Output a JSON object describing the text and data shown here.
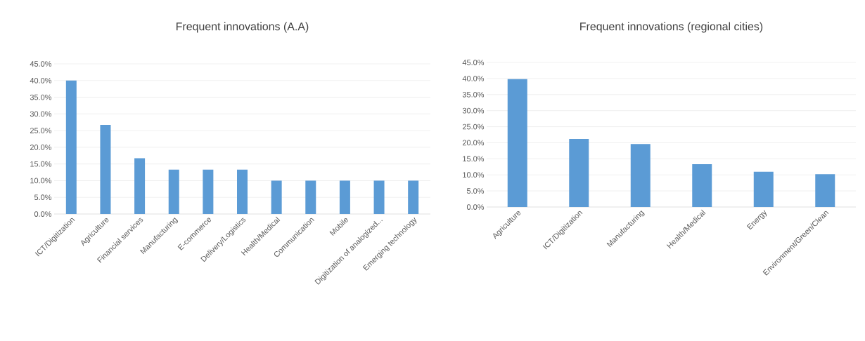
{
  "chart_data": [
    {
      "type": "bar",
      "title": "Frequent innovations (A.A)",
      "categories": [
        "ICT/Digitization",
        "Agriculture",
        "Financial services",
        "Manufacturing",
        "E-commerce",
        "Delivery/Logistics",
        "Health/Medical",
        "Communication",
        "Mobile",
        "Digitization of analogized...",
        "Emerging technology"
      ],
      "values": [
        40,
        26.7,
        16.7,
        13.3,
        13.3,
        13.3,
        10,
        10,
        10,
        10,
        10
      ],
      "color": "#5b9bd5",
      "ylim": [
        0,
        45
      ],
      "grid": "y",
      "yticks": [
        {
          "value": 0,
          "label": "0.0%"
        },
        {
          "value": 5,
          "label": "5.0%"
        },
        {
          "value": 10,
          "label": "10.0%"
        },
        {
          "value": 15,
          "label": "15.0%"
        },
        {
          "value": 20,
          "label": "20.0%"
        },
        {
          "value": 25,
          "label": "25.0%"
        },
        {
          "value": 30,
          "label": "30.0%"
        },
        {
          "value": 35,
          "label": "35.0%"
        },
        {
          "value": 40,
          "label": "40.0%"
        },
        {
          "value": 45,
          "label": "45.0%"
        }
      ]
    },
    {
      "type": "bar",
      "title": "Frequent innovations (regional cities)",
      "categories": [
        "Agriculture",
        "ICT/Digitization",
        "Manufacturing",
        "Health/Medical",
        "Energy",
        "Environment/Green/Clean"
      ],
      "values": [
        39.8,
        21.2,
        19.6,
        13.3,
        11,
        10.2
      ],
      "color": "#5b9bd5",
      "ylim": [
        0,
        45
      ],
      "grid": "y",
      "yticks": [
        {
          "value": 0,
          "label": "0.0%"
        },
        {
          "value": 5,
          "label": "5.0%"
        },
        {
          "value": 10,
          "label": "10.0%"
        },
        {
          "value": 15,
          "label": "15.0%"
        },
        {
          "value": 20,
          "label": "20.0%"
        },
        {
          "value": 25,
          "label": "25.0%"
        },
        {
          "value": 30,
          "label": "30.0%"
        },
        {
          "value": 35,
          "label": "35.0%"
        },
        {
          "value": 40,
          "label": "40.0%"
        },
        {
          "value": 45,
          "label": "45.0%"
        }
      ]
    }
  ]
}
